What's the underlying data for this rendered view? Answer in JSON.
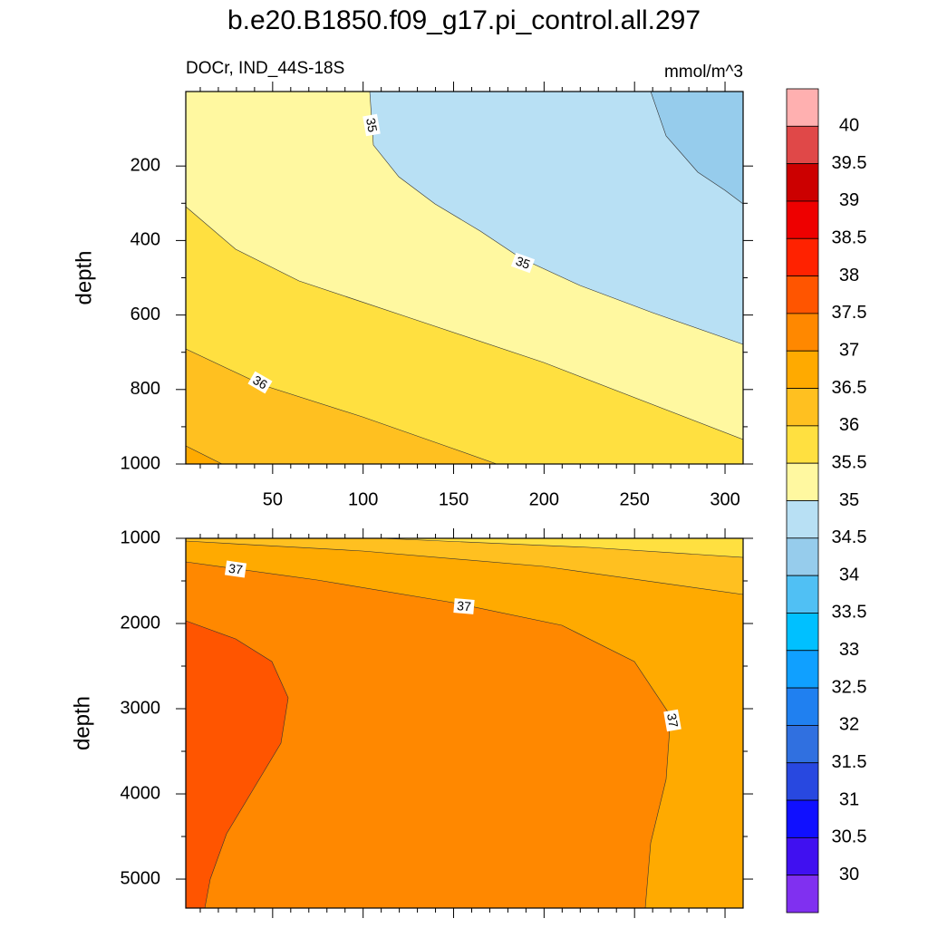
{
  "title": "b.e20.B1850.f09_g17.pi_control.all.297",
  "subtitle_left": "DOCr, IND_44S-18S",
  "subtitle_right": "mmol/m^3",
  "chart_data": [
    {
      "type": "contour",
      "y_label": "depth",
      "xlim": [
        2,
        310
      ],
      "xticks": [
        50,
        100,
        150,
        200,
        250,
        300
      ],
      "show_xtick_labels": true,
      "ylim": [
        0,
        1000
      ],
      "yticks": [
        200,
        400,
        600,
        800,
        1000
      ],
      "y_reversed": true,
      "contour_labels": [
        35,
        35,
        36
      ]
    },
    {
      "type": "contour",
      "y_label": "depth",
      "xlim": [
        2,
        310
      ],
      "xticks": [
        50,
        100,
        150,
        200,
        250,
        300
      ],
      "show_xtick_labels": false,
      "ylim": [
        1000,
        5340
      ],
      "yticks": [
        1000,
        2000,
        3000,
        4000,
        5000
      ],
      "y_reversed": true,
      "contour_labels": [
        37,
        37,
        37
      ]
    }
  ],
  "colorbar": {
    "levels": [
      40,
      39.5,
      39,
      38.5,
      38,
      37.5,
      37,
      36.5,
      36,
      35.5,
      35,
      34.5,
      34,
      33.5,
      33,
      32.5,
      32,
      31.5,
      31,
      30.5,
      30
    ],
    "colors": [
      "#ffb0b0",
      "#e04848",
      "#cc0000",
      "#ee0000",
      "#ff2200",
      "#ff5500",
      "#ff8800",
      "#ffaa00",
      "#ffc020",
      "#ffe040",
      "#fff8a0",
      "#b8e0f4",
      "#96ccec",
      "#50c0f4",
      "#00c0ff",
      "#10a0ff",
      "#2080f0",
      "#3070e0",
      "#2848e0",
      "#1010ff",
      "#4010f0",
      "#8030f0"
    ]
  }
}
